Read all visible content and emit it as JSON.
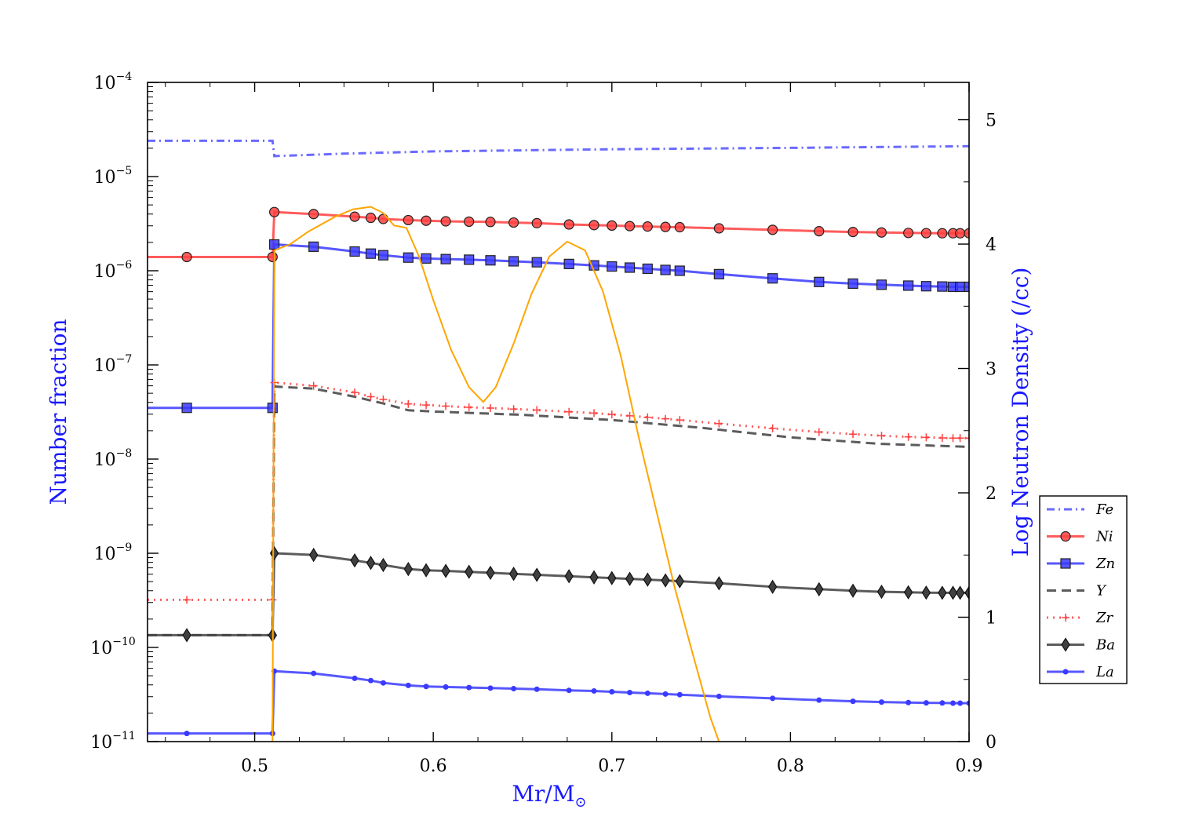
{
  "chart_data": {
    "type": "line",
    "title": "",
    "xlabel": "Mr/M",
    "xlabel_sub": "⊙",
    "ylabel": "Number fraction",
    "y2label": "Log Neutron Density (/cc)",
    "xlim": [
      0.44,
      0.9
    ],
    "ylim_log10": [
      -11,
      -4
    ],
    "y2lim": [
      0,
      5.3
    ],
    "x_ticks": [
      "0.5",
      "0.6",
      "0.7",
      "0.8",
      "0.9"
    ],
    "x_tick_values": [
      0.5,
      0.6,
      0.7,
      0.8,
      0.9
    ],
    "y_ticks_exp": [
      -11,
      -10,
      -9,
      -8,
      -7,
      -6,
      -5,
      -4
    ],
    "y_tick_base": "10",
    "y2_ticks": [
      "0",
      "1",
      "2",
      "3",
      "4",
      "5"
    ],
    "y2_tick_values": [
      0,
      1,
      2,
      3,
      4,
      5
    ],
    "legend_position": "right",
    "colors": {
      "Fe": "#5050ff",
      "Ni": "#ff4040",
      "Zn": "#3a3aff",
      "Y": "#404040",
      "Zr": "#ff4040",
      "Ba": "#404040",
      "La": "#3a3aff",
      "neutron": "#ffa500",
      "axis_label": "#1a1aff"
    },
    "series": [
      {
        "name": "Fe",
        "style": "dashdot",
        "marker": "none",
        "x": [
          0.44,
          0.51,
          0.511,
          0.55,
          0.6,
          0.7,
          0.8,
          0.9
        ],
        "y": [
          2.4e-05,
          2.4e-05,
          1.65e-05,
          1.75e-05,
          1.85e-05,
          1.95e-05,
          2.02e-05,
          2.1e-05
        ]
      },
      {
        "name": "Ni",
        "style": "solid",
        "marker": "circle",
        "x": [
          0.44,
          0.462,
          0.51,
          0.511,
          0.533,
          0.556,
          0.565,
          0.572,
          0.586,
          0.596,
          0.607,
          0.62,
          0.632,
          0.645,
          0.658,
          0.676,
          0.69,
          0.7,
          0.71,
          0.72,
          0.73,
          0.738,
          0.76,
          0.79,
          0.816,
          0.835,
          0.851,
          0.866,
          0.876,
          0.885,
          0.891,
          0.895,
          0.9
        ],
        "y": [
          1.4e-06,
          1.4e-06,
          1.4e-06,
          4.2e-06,
          4e-06,
          3.75e-06,
          3.65e-06,
          3.55e-06,
          3.45e-06,
          3.4e-06,
          3.35e-06,
          3.32e-06,
          3.3e-06,
          3.25e-06,
          3.2e-06,
          3.1e-06,
          3.05e-06,
          3.02e-06,
          2.98e-06,
          2.95e-06,
          2.92e-06,
          2.9e-06,
          2.82e-06,
          2.72e-06,
          2.63e-06,
          2.58e-06,
          2.55e-06,
          2.52e-06,
          2.51e-06,
          2.5e-06,
          2.5e-06,
          2.5e-06,
          2.5e-06
        ]
      },
      {
        "name": "Zn",
        "style": "solid",
        "marker": "square",
        "x": [
          0.44,
          0.462,
          0.51,
          0.511,
          0.533,
          0.556,
          0.565,
          0.572,
          0.586,
          0.596,
          0.607,
          0.62,
          0.632,
          0.645,
          0.658,
          0.676,
          0.69,
          0.7,
          0.71,
          0.72,
          0.73,
          0.738,
          0.76,
          0.79,
          0.816,
          0.835,
          0.851,
          0.866,
          0.876,
          0.885,
          0.891,
          0.895,
          0.9
        ],
        "y": [
          3.5e-08,
          3.5e-08,
          3.5e-08,
          1.9e-06,
          1.8e-06,
          1.6e-06,
          1.52e-06,
          1.46e-06,
          1.38e-06,
          1.35e-06,
          1.33e-06,
          1.31e-06,
          1.29e-06,
          1.26e-06,
          1.23e-06,
          1.18e-06,
          1.14e-06,
          1.11e-06,
          1.08e-06,
          1.05e-06,
          1.02e-06,
          1e-06,
          9.2e-07,
          8.3e-07,
          7.6e-07,
          7.3e-07,
          7.1e-07,
          6.95e-07,
          6.85e-07,
          6.8e-07,
          6.75e-07,
          6.75e-07,
          6.75e-07
        ]
      },
      {
        "name": "Y",
        "style": "dashed",
        "marker": "none",
        "x": [
          0.44,
          0.51,
          0.511,
          0.533,
          0.556,
          0.572,
          0.586,
          0.6,
          0.65,
          0.7,
          0.75,
          0.8,
          0.85,
          0.9
        ],
        "y": [
          1.35e-10,
          1.35e-10,
          5.9e-08,
          5.6e-08,
          4.6e-08,
          3.9e-08,
          3.3e-08,
          3.2e-08,
          2.95e-08,
          2.6e-08,
          2.15e-08,
          1.7e-08,
          1.45e-08,
          1.35e-08
        ]
      },
      {
        "name": "Zr",
        "style": "dotted",
        "marker": "plus",
        "x": [
          0.44,
          0.462,
          0.51,
          0.511,
          0.533,
          0.556,
          0.565,
          0.572,
          0.586,
          0.596,
          0.607,
          0.62,
          0.632,
          0.645,
          0.658,
          0.676,
          0.69,
          0.7,
          0.71,
          0.72,
          0.73,
          0.738,
          0.76,
          0.79,
          0.816,
          0.835,
          0.851,
          0.866,
          0.876,
          0.885,
          0.891,
          0.895,
          0.9
        ],
        "y": [
          3.2e-10,
          3.2e-10,
          3.2e-10,
          6.5e-08,
          6e-08,
          5.1e-08,
          4.6e-08,
          4.3e-08,
          3.85e-08,
          3.75e-08,
          3.65e-08,
          3.55e-08,
          3.48e-08,
          3.4e-08,
          3.32e-08,
          3.18e-08,
          3.08e-08,
          2.98e-08,
          2.88e-08,
          2.78e-08,
          2.68e-08,
          2.6e-08,
          2.38e-08,
          2.12e-08,
          1.94e-08,
          1.84e-08,
          1.77e-08,
          1.72e-08,
          1.7e-08,
          1.68e-08,
          1.67e-08,
          1.67e-08,
          1.67e-08
        ]
      },
      {
        "name": "Ba",
        "style": "solid",
        "marker": "diamond",
        "x": [
          0.44,
          0.462,
          0.51,
          0.511,
          0.533,
          0.556,
          0.565,
          0.572,
          0.586,
          0.596,
          0.607,
          0.62,
          0.632,
          0.645,
          0.658,
          0.676,
          0.69,
          0.7,
          0.71,
          0.72,
          0.73,
          0.738,
          0.76,
          0.79,
          0.816,
          0.835,
          0.851,
          0.866,
          0.876,
          0.885,
          0.891,
          0.895,
          0.9
        ],
        "y": [
          1.35e-10,
          1.35e-10,
          1.35e-10,
          1e-09,
          9.6e-10,
          8.4e-10,
          7.9e-10,
          7.5e-10,
          6.8e-10,
          6.6e-10,
          6.5e-10,
          6.35e-10,
          6.2e-10,
          6.05e-10,
          5.9e-10,
          5.7e-10,
          5.55e-10,
          5.45e-10,
          5.35e-10,
          5.25e-10,
          5.15e-10,
          5.05e-10,
          4.8e-10,
          4.4e-10,
          4.15e-10,
          4e-10,
          3.9e-10,
          3.85e-10,
          3.82e-10,
          3.8e-10,
          3.8e-10,
          3.8e-10,
          3.8e-10
        ]
      },
      {
        "name": "La",
        "style": "solid",
        "marker": "dot",
        "x": [
          0.44,
          0.462,
          0.51,
          0.511,
          0.533,
          0.556,
          0.565,
          0.572,
          0.586,
          0.596,
          0.607,
          0.62,
          0.632,
          0.645,
          0.658,
          0.676,
          0.69,
          0.7,
          0.71,
          0.72,
          0.73,
          0.738,
          0.76,
          0.79,
          0.816,
          0.835,
          0.851,
          0.866,
          0.876,
          0.885,
          0.891,
          0.895,
          0.9
        ],
        "y": [
          1.22e-11,
          1.22e-11,
          1.22e-11,
          5.6e-11,
          5.3e-11,
          4.7e-11,
          4.45e-11,
          4.2e-11,
          3.95e-11,
          3.85e-11,
          3.8e-11,
          3.75e-11,
          3.7e-11,
          3.65e-11,
          3.6e-11,
          3.5e-11,
          3.45e-11,
          3.38e-11,
          3.32e-11,
          3.26e-11,
          3.2e-11,
          3.15e-11,
          3.02e-11,
          2.88e-11,
          2.76e-11,
          2.68e-11,
          2.63e-11,
          2.6e-11,
          2.58e-11,
          2.57e-11,
          2.56e-11,
          2.56e-11,
          2.56e-11
        ]
      }
    ],
    "neutron_density": {
      "name": "Log Neutron Density",
      "axis": "right",
      "x": [
        0.51,
        0.511,
        0.52,
        0.53,
        0.545,
        0.555,
        0.565,
        0.572,
        0.578,
        0.585,
        0.592,
        0.6,
        0.61,
        0.62,
        0.628,
        0.635,
        0.645,
        0.655,
        0.665,
        0.675,
        0.685,
        0.695,
        0.705,
        0.715,
        0.725,
        0.735,
        0.745,
        0.755,
        0.76
      ],
      "y": [
        0.0,
        3.95,
        4.0,
        4.1,
        4.22,
        4.28,
        4.3,
        4.25,
        4.15,
        4.13,
        3.9,
        3.55,
        3.15,
        2.85,
        2.73,
        2.85,
        3.2,
        3.6,
        3.9,
        4.02,
        3.95,
        3.62,
        3.1,
        2.45,
        1.85,
        1.25,
        0.72,
        0.2,
        0.0
      ]
    }
  }
}
